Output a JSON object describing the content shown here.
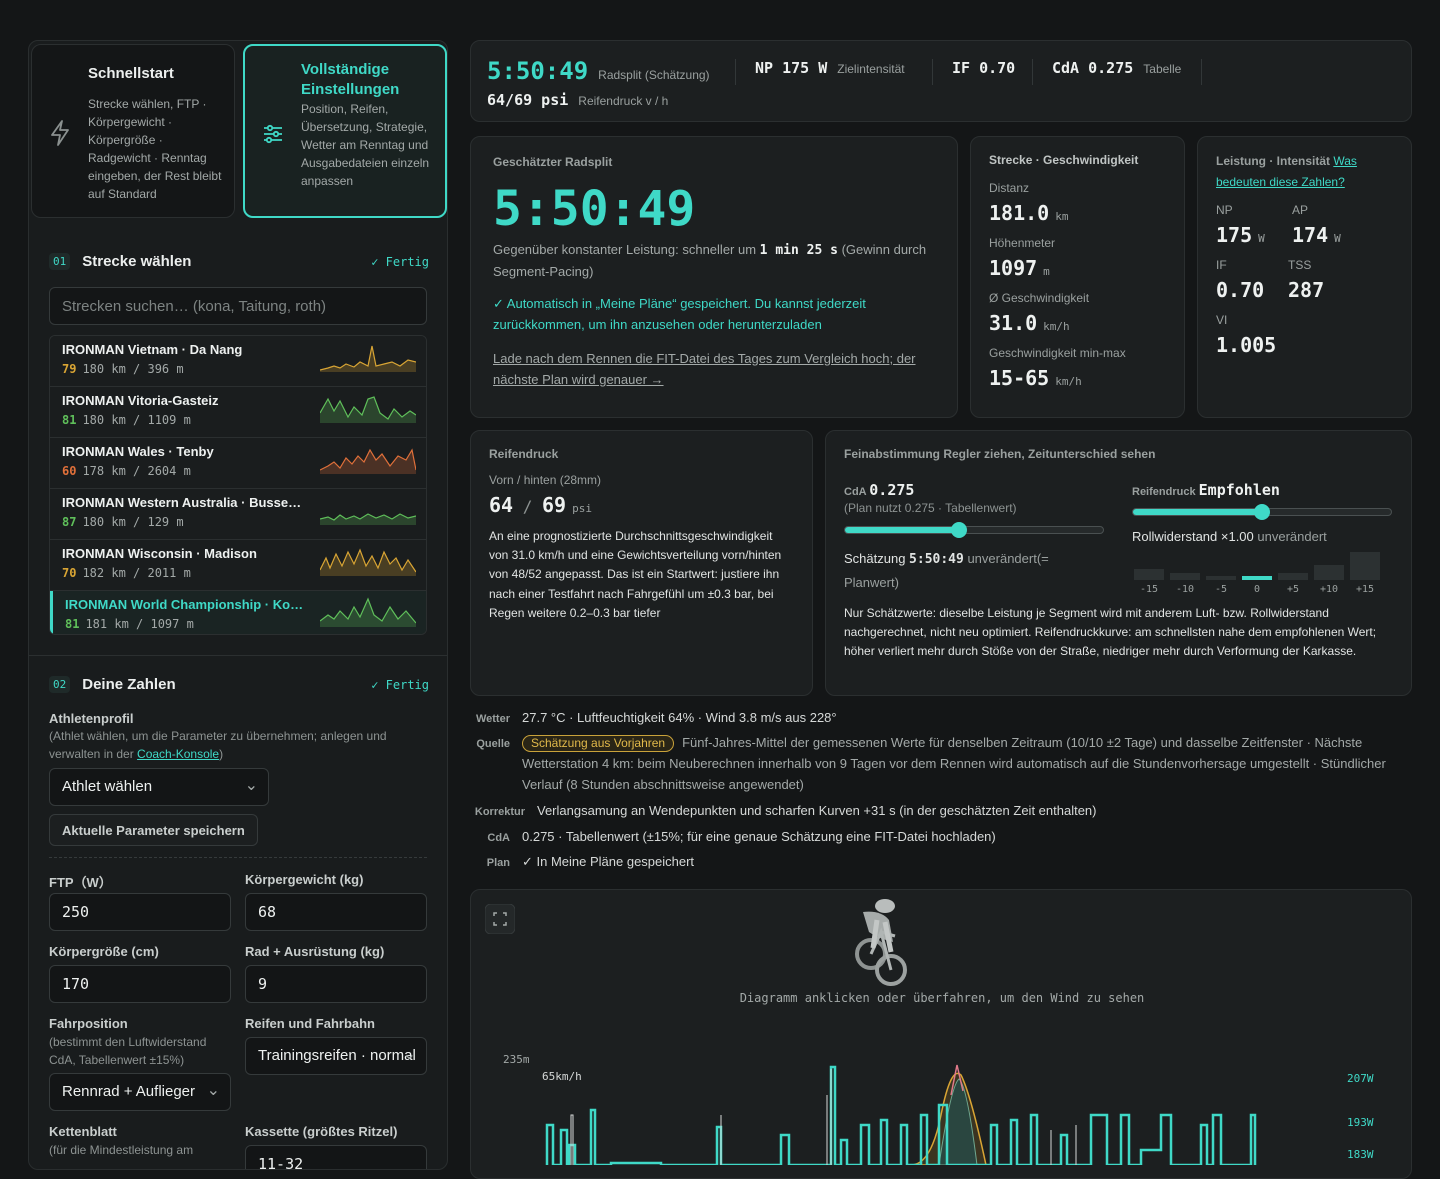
{
  "modes": [
    {
      "title": "Schnellstart",
      "desc": "Strecke wählen, FTP · Körpergewicht · Körpergröße · Radgewicht · Renntag eingeben, der Rest bleibt auf Standard"
    },
    {
      "title": "Vollständige Einstellungen",
      "desc": "Position, Reifen, Übersetzung, Strategie, Wetter am Renntag und Ausgabedateien einzeln anpassen"
    }
  ],
  "sec1": {
    "num": "01",
    "title": "Strecke wählen",
    "done": "✓ Fertig",
    "search_placeholder": "Strecken suchen… (kona, Taitung, roth)"
  },
  "courses": [
    {
      "name": "IRONMAN Vietnam · Da Nang",
      "score": "79",
      "meta": "180 km / 396 m",
      "color": "#d9a534"
    },
    {
      "name": "IRONMAN Vitoria-Gasteiz",
      "score": "81",
      "meta": "180 km / 1109 m",
      "color": "#5fbf5a"
    },
    {
      "name": "IRONMAN Wales · Tenby",
      "score": "60",
      "meta": "178 km / 2604 m",
      "color": "#e0703a"
    },
    {
      "name": "IRONMAN Western Australia · Busse…",
      "score": "87",
      "meta": "180 km / 129 m",
      "color": "#5fbf5a"
    },
    {
      "name": "IRONMAN Wisconsin · Madison",
      "score": "70",
      "meta": "182 km / 2011 m",
      "color": "#d9a534"
    },
    {
      "name": "IRONMAN World Championship · Ko…",
      "score": "81",
      "meta": "181 km / 1097 m",
      "color": "#5fbf5a"
    }
  ],
  "sec2": {
    "num": "02",
    "title": "Deine Zahlen",
    "done": "✓ Fertig",
    "athlete_label": "Athletenprofil",
    "athlete_sub": "(Athlet wählen, um die Parameter zu übernehmen; anlegen und verwalten in der ",
    "athlete_link": "Coach-Konsole",
    "athlete_sub_end": ")",
    "athlete_select": "Athlet wählen",
    "save_btn": "Aktuelle Parameter speichern",
    "ftp_label": "FTP（W）",
    "ftp": "250",
    "weight_label": "Körpergewicht (kg)",
    "weight": "68",
    "height_label": "Körpergröße (cm)",
    "height": "170",
    "bike_label": "Rad + Ausrüstung (kg)",
    "bike": "9",
    "pos_label": "Fahrposition",
    "pos_sub": "(bestimmt den Luftwiderstand CdA, Tabellenwert ±15%)",
    "pos": "Rennrad + Auflieger",
    "tire_label": "Reifen und Fahrbahn",
    "tire": "Trainingsreifen · normal",
    "chain_label": "Kettenblatt",
    "chain_sub": "(für die Mindestleistung am",
    "cass_label": "Kassette (größtes Ritzel)",
    "cass": "11-32"
  },
  "top": {
    "time": "5:50:49",
    "time_lab": "Radsplit (Schätzung)",
    "np": "NP 175 W",
    "np_lab": "Zielintensität",
    "if": "IF 0.70",
    "cda": "CdA 0.275",
    "cda_lab": "Tabelle",
    "psi": "64/69 psi",
    "psi_lab": "Reifendruck v / h"
  },
  "split": {
    "title": "Geschätzter Radsplit",
    "time": "5:50:49",
    "gain_pre": "Gegenüber konstanter Leistung: schneller um ",
    "gain_val": "1 min 25 s",
    "gain_post": "(Gewinn durch Segment-Pacing)",
    "saved": "✓ Automatisch in „Meine Pläne“ gespeichert. Du kannst jederzeit zurückkommen, um ihn anzusehen oder herunterzuladen",
    "upload": "Lade nach dem Rennen die FIT-Datei des Tages zum Vergleich hoch; der nächste Plan wird genauer →"
  },
  "route": {
    "title": "Strecke · Geschwindigkeit",
    "dist_lab": "Distanz",
    "dist": "181.0",
    "dist_u": "km",
    "elev_lab": "Höhenmeter",
    "elev": "1097",
    "elev_u": "m",
    "avg_lab": "Ø Geschwindigkeit",
    "avg": "31.0",
    "avg_u": "km/h",
    "rng_lab": "Geschwindigkeit min-max",
    "rng": "15-65",
    "rng_u": "km/h"
  },
  "power": {
    "title": "Leistung · Intensität",
    "link": "Was bedeuten diese Zahlen?",
    "np_lab": "NP",
    "np": "175",
    "ap_lab": "AP",
    "ap": "174",
    "w": "W",
    "if_lab": "IF",
    "if": "0.70",
    "tss_lab": "TSS",
    "tss": "287",
    "vi_lab": "VI",
    "vi": "1.005"
  },
  "tire": {
    "title": "Reifendruck",
    "sub": "Vorn / hinten (28mm)",
    "front": "64",
    "rear": "69",
    "unit": "psi",
    "text": "An eine prognostizierte Durchschnittsgeschwindigkeit von 31.0 km/h und eine Gewichtsverteilung vorn/hinten von 48/52 angepasst. Das ist ein Startwert: justiere ihn nach einer Testfahrt nach Fahrgefühl um ±0.3 bar, bei Regen weitere 0.2–0.3 bar tiefer"
  },
  "tune": {
    "title": "Feinabstimmung Regler ziehen, Zeitunterschied sehen",
    "cda_lab": "CdA",
    "cda": "0.275",
    "cda_sub": "(Plan nutzt 0.275 · Tabellenwert)",
    "cda_frac": 0.44,
    "est_pre": "Schätzung ",
    "est_time": "5:50:49",
    "est_post": " unverändert(= Planwert)",
    "tire_lab": "Reifendruck",
    "tire_val": "Empfohlen",
    "tire_frac": 0.5,
    "roll_pre": "Rollwiderstand ×1.00",
    "roll_post": " unverändert",
    "ticks": [
      "-15",
      "-10",
      "-5",
      "0",
      "+5",
      "+10",
      "+15"
    ],
    "note": "Nur Schätzwerte: dieselbe Leistung je Segment wird mit anderem Luft- bzw. Rollwiderstand nachgerechnet, nicht neu optimiert. Reifendruckkurve: am schnellsten nahe dem empfohlenen Wert; höher verliert mehr durch Stöße von der Straße, niedriger mehr durch Verformung der Karkasse."
  },
  "info": {
    "w_k": "Wetter",
    "w_v": "27.7 °C · Luftfeuchtigkeit 64% · Wind 3.8 m/s aus 228°",
    "q_k": "Quelle",
    "q_pill": "Schätzung aus Vorjahren",
    "q_v1": "Fünf-Jahres-Mittel der gemessenen Werte für denselben Zeitraum (10/10 ±2 Tage) und dasselbe Zeitfenster ·",
    "q_v2": "Nächste Wetterstation 4 km: beim Neuberechnen innerhalb von 9 Tagen vor dem Rennen wird automatisch auf die Stundenvorhersage umgestellt · Stündlicher Verlauf (8 Stunden abschnittsweise angewendet)",
    "k_k": "Korrektur",
    "k_v": "Verlangsamung an Wendepunkten und scharfen Kurven +31 s (in der geschätzten Zeit enthalten)",
    "c_k": "CdA",
    "c_v": "0.275 · Tabellenwert (±15%; für eine genaue Schätzung eine FIT-Datei hochladen)",
    "p_k": "Plan",
    "p_v": "✓ In Meine Pläne gespeichert"
  },
  "chart": {
    "hint": "Diagramm anklicken oder überfahren, um den Wind zu sehen",
    "y_left": "235m",
    "speed": "65km/h",
    "r1": "207W",
    "r2": "193W",
    "r3": "183W"
  }
}
